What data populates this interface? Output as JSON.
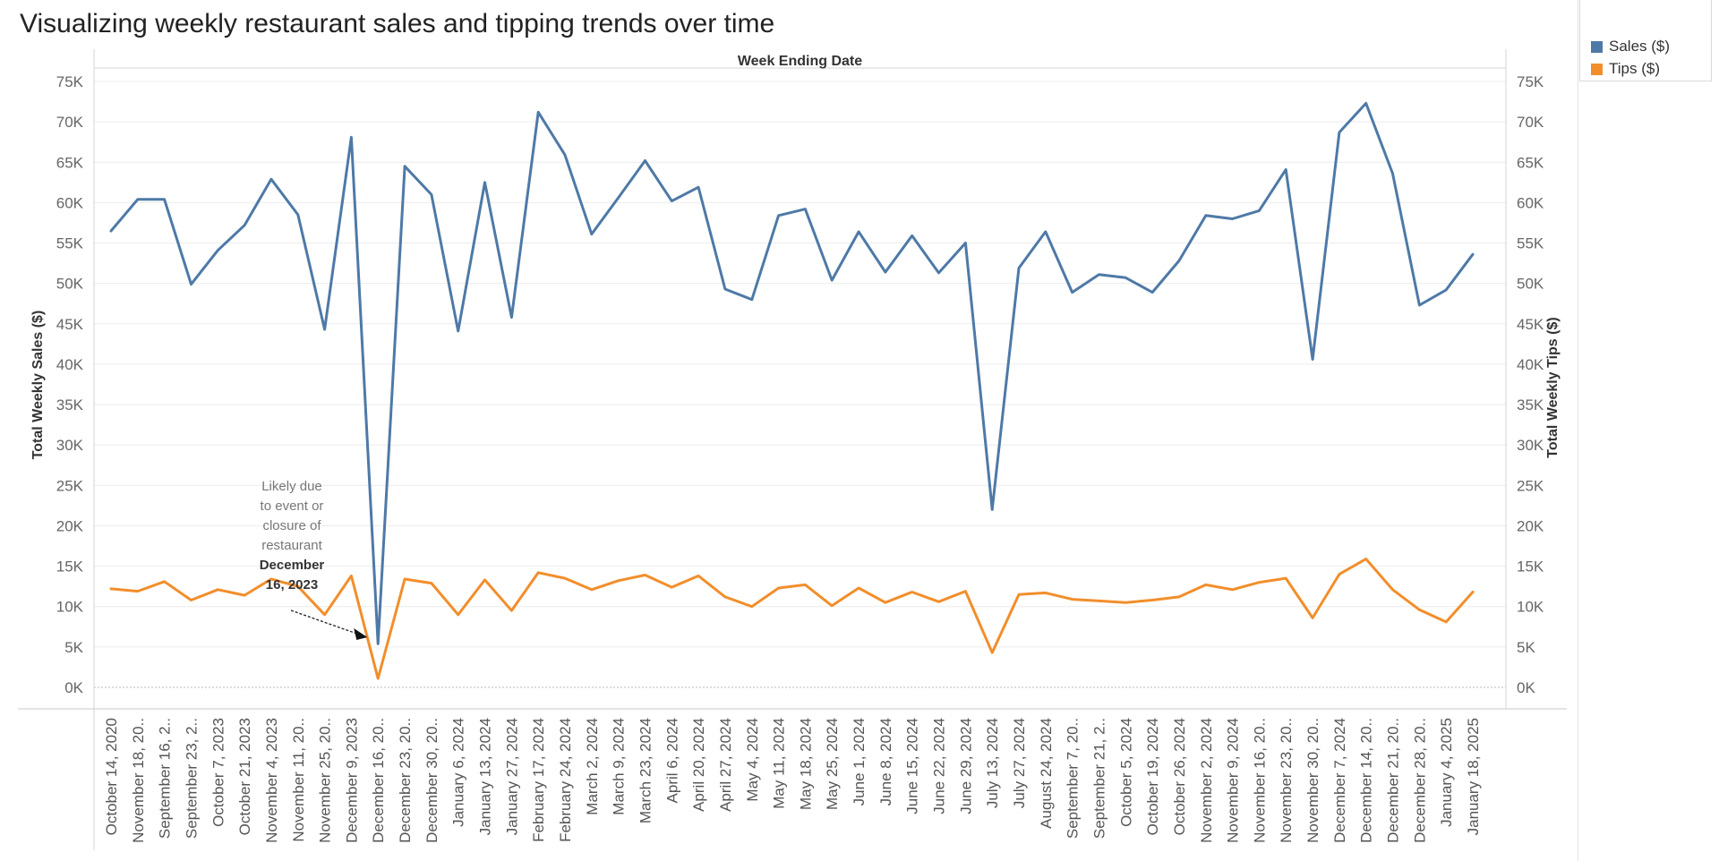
{
  "title": "Visualizing weekly restaurant sales and tipping trends over time",
  "legend": {
    "items": [
      {
        "label": "Sales ($)",
        "color": "#4e79a7"
      },
      {
        "label": "Tips ($)",
        "color": "#f28e2b"
      }
    ]
  },
  "annotation": {
    "text_lines": [
      "Likely due",
      "to event or",
      "closure of",
      "restaurant"
    ],
    "bold_lines": [
      "December",
      "16, 2023"
    ],
    "target_category": "December 16, 2023"
  },
  "chart_data": {
    "type": "line",
    "title": "Visualizing weekly restaurant sales and tipping trends over time",
    "xlabel": "Week Ending Date",
    "ylabel": "Total Weekly Sales ($)",
    "y2label": "Total Weekly Tips ($)",
    "ylim": [
      0,
      75000
    ],
    "yticks": [
      0,
      5000,
      10000,
      15000,
      20000,
      25000,
      30000,
      35000,
      40000,
      45000,
      50000,
      55000,
      60000,
      65000,
      70000,
      75000
    ],
    "ytick_labels": [
      "0K",
      "5K",
      "10K",
      "15K",
      "20K",
      "25K",
      "30K",
      "35K",
      "40K",
      "45K",
      "50K",
      "55K",
      "60K",
      "65K",
      "70K",
      "75K"
    ],
    "grid": true,
    "legend_position": "top-right",
    "categories": [
      "October 14, 2020",
      "November 18, 20..",
      "September 16, 2..",
      "September 23, 2..",
      "October 7, 2023",
      "October 21, 2023",
      "November 4, 2023",
      "November 11, 20..",
      "November 25, 20..",
      "December 9, 2023",
      "December 16, 20..",
      "December 23, 20..",
      "December 30, 20..",
      "January 6, 2024",
      "January 13, 2024",
      "January 27, 2024",
      "February 17, 2024",
      "February 24, 2024",
      "March 2, 2024",
      "March 9, 2024",
      "March 23, 2024",
      "April 6, 2024",
      "April 20, 2024",
      "April 27, 2024",
      "May 4, 2024",
      "May 11, 2024",
      "May 18, 2024",
      "May 25, 2024",
      "June 1, 2024",
      "June 8, 2024",
      "June 15, 2024",
      "June 22, 2024",
      "June 29, 2024",
      "July 13, 2024",
      "July 27, 2024",
      "August 24, 2024",
      "September 7, 20..",
      "September 21, 2..",
      "October 5, 2024",
      "October 19, 2024",
      "October 26, 2024",
      "November 2, 2024",
      "November 9, 2024",
      "November 16, 20..",
      "November 23, 20..",
      "November 30, 20..",
      "December 7, 2024",
      "December 14, 20..",
      "December 21, 20..",
      "December 28, 20..",
      "January 4, 2025",
      "January 18, 2025"
    ],
    "series": [
      {
        "name": "Sales ($)",
        "color": "#4e79a7",
        "values": [
          56500,
          60400,
          60400,
          49900,
          54100,
          57200,
          62900,
          58500,
          44300,
          68100,
          5400,
          64500,
          61000,
          44100,
          62500,
          45800,
          71200,
          65900,
          56100,
          60600,
          65200,
          60200,
          61900,
          49300,
          48000,
          58400,
          59200,
          50400,
          56400,
          51400,
          55900,
          51300,
          55000,
          22000,
          51900,
          56400,
          48900,
          51100,
          50700,
          48900,
          52800,
          58400,
          58000,
          59000,
          64100,
          40600,
          68700,
          72300,
          63600,
          47300,
          49200,
          53600
        ]
      },
      {
        "name": "Tips ($)",
        "color": "#f28e2b",
        "values": [
          12200,
          11900,
          13100,
          10800,
          12100,
          11400,
          13400,
          12500,
          9000,
          13800,
          1100,
          13400,
          12900,
          9000,
          13300,
          9500,
          14200,
          13500,
          12100,
          13200,
          13900,
          12400,
          13800,
          11200,
          10000,
          12300,
          12700,
          10100,
          12300,
          10500,
          11800,
          10600,
          11900,
          4300,
          11500,
          11700,
          10900,
          10700,
          10500,
          10800,
          11200,
          12700,
          12100,
          13000,
          13500,
          8600,
          14000,
          15900,
          12100,
          9600,
          8100,
          11800
        ]
      }
    ]
  }
}
